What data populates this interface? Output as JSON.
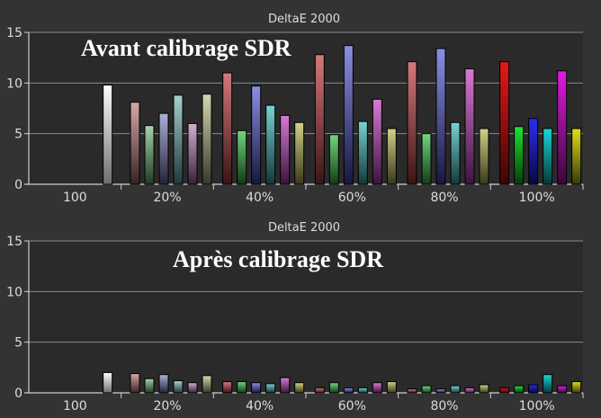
{
  "colors": {
    "background": "#333333",
    "plot_area": "#2a2a2a",
    "grid": "#8a8a8a",
    "axis": "#cfcfcf",
    "text": "#dcdcdc",
    "overlay_text": "#ffffff",
    "bar_stroke": "#000000"
  },
  "chart_data": [
    {
      "type": "bar",
      "title": "DeltaE 2000",
      "overlay_label": "Avant calibrage SDR",
      "ylim": [
        0,
        15
      ],
      "yticks": [
        0,
        5,
        10,
        15
      ],
      "grid": true,
      "categories": [
        "100",
        "20%",
        "40%",
        "60%",
        "80%",
        "100%"
      ],
      "groups": [
        {
          "category": "100",
          "bars": [
            {
              "color": "white",
              "value": 9.8
            }
          ]
        },
        {
          "category": "20%",
          "bars": [
            {
              "color": "red",
              "value": 8.1
            },
            {
              "color": "green",
              "value": 5.8
            },
            {
              "color": "blue",
              "value": 7.0
            },
            {
              "color": "cyan",
              "value": 8.8
            },
            {
              "color": "magenta",
              "value": 6.0
            },
            {
              "color": "yellow",
              "value": 8.9
            }
          ]
        },
        {
          "category": "40%",
          "bars": [
            {
              "color": "red",
              "value": 11.0
            },
            {
              "color": "green",
              "value": 5.3
            },
            {
              "color": "blue",
              "value": 9.7
            },
            {
              "color": "cyan",
              "value": 7.8
            },
            {
              "color": "magenta",
              "value": 6.8
            },
            {
              "color": "yellow",
              "value": 6.1
            }
          ]
        },
        {
          "category": "60%",
          "bars": [
            {
              "color": "red",
              "value": 12.8
            },
            {
              "color": "green",
              "value": 4.9
            },
            {
              "color": "blue",
              "value": 13.7
            },
            {
              "color": "cyan",
              "value": 6.2
            },
            {
              "color": "magenta",
              "value": 8.4
            },
            {
              "color": "yellow",
              "value": 5.5
            }
          ]
        },
        {
          "category": "80%",
          "bars": [
            {
              "color": "red",
              "value": 12.1
            },
            {
              "color": "green",
              "value": 5.0
            },
            {
              "color": "blue",
              "value": 13.4
            },
            {
              "color": "cyan",
              "value": 6.1
            },
            {
              "color": "magenta",
              "value": 11.4
            },
            {
              "color": "yellow",
              "value": 5.5
            }
          ]
        },
        {
          "category": "100%",
          "bars": [
            {
              "color": "red",
              "value": 12.1
            },
            {
              "color": "green",
              "value": 5.7
            },
            {
              "color": "blue",
              "value": 6.5
            },
            {
              "color": "cyan",
              "value": 5.5
            },
            {
              "color": "magenta",
              "value": 11.2
            },
            {
              "color": "yellow",
              "value": 5.5
            }
          ]
        }
      ]
    },
    {
      "type": "bar",
      "title": "DeltaE 2000",
      "overlay_label": "Après calibrage SDR",
      "ylim": [
        0,
        15
      ],
      "yticks": [
        0,
        5,
        10,
        15
      ],
      "grid": true,
      "categories": [
        "100",
        "20%",
        "40%",
        "60%",
        "80%",
        "100%"
      ],
      "groups": [
        {
          "category": "100",
          "bars": [
            {
              "color": "white",
              "value": 2.0
            }
          ]
        },
        {
          "category": "20%",
          "bars": [
            {
              "color": "red",
              "value": 1.9
            },
            {
              "color": "green",
              "value": 1.4
            },
            {
              "color": "blue",
              "value": 1.8
            },
            {
              "color": "cyan",
              "value": 1.2
            },
            {
              "color": "magenta",
              "value": 1.0
            },
            {
              "color": "yellow",
              "value": 1.7
            }
          ]
        },
        {
          "category": "40%",
          "bars": [
            {
              "color": "red",
              "value": 1.1
            },
            {
              "color": "green",
              "value": 1.1
            },
            {
              "color": "blue",
              "value": 1.0
            },
            {
              "color": "cyan",
              "value": 0.9
            },
            {
              "color": "magenta",
              "value": 1.5
            },
            {
              "color": "yellow",
              "value": 1.0
            }
          ]
        },
        {
          "category": "60%",
          "bars": [
            {
              "color": "red",
              "value": 0.5
            },
            {
              "color": "green",
              "value": 1.0
            },
            {
              "color": "blue",
              "value": 0.5
            },
            {
              "color": "cyan",
              "value": 0.5
            },
            {
              "color": "magenta",
              "value": 1.0
            },
            {
              "color": "yellow",
              "value": 1.1
            }
          ]
        },
        {
          "category": "80%",
          "bars": [
            {
              "color": "red",
              "value": 0.4
            },
            {
              "color": "green",
              "value": 0.7
            },
            {
              "color": "blue",
              "value": 0.4
            },
            {
              "color": "cyan",
              "value": 0.7
            },
            {
              "color": "magenta",
              "value": 0.5
            },
            {
              "color": "yellow",
              "value": 0.8
            }
          ]
        },
        {
          "category": "100%",
          "bars": [
            {
              "color": "red",
              "value": 0.5
            },
            {
              "color": "green",
              "value": 0.7
            },
            {
              "color": "blue",
              "value": 0.8
            },
            {
              "color": "cyan",
              "value": 1.8
            },
            {
              "color": "magenta",
              "value": 0.7
            },
            {
              "color": "yellow",
              "value": 1.1
            }
          ]
        }
      ]
    }
  ]
}
